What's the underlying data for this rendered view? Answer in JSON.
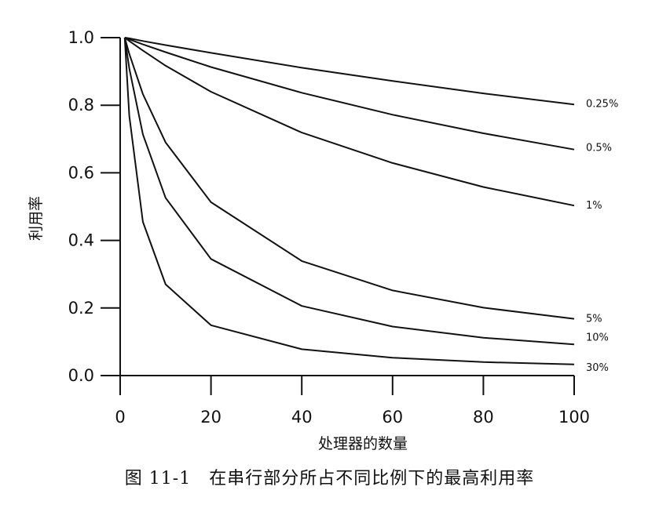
{
  "caption": "图 11-1　在串行部分所占不同比例下的最高利用率",
  "chart_data": {
    "type": "line",
    "xlabel": "处理器的数量",
    "ylabel": "利用率",
    "xlim": [
      0,
      100
    ],
    "ylim": [
      0,
      1.0
    ],
    "x_ticks": [
      0,
      20,
      40,
      60,
      80,
      100
    ],
    "x_tick_labels": [
      "0",
      "20",
      "40",
      "60",
      "80",
      "100"
    ],
    "y_ticks": [
      0.0,
      0.2,
      0.4,
      0.6,
      0.8,
      1.0
    ],
    "y_tick_labels": [
      "0.0",
      "0.2",
      "0.4",
      "0.6",
      "0.8",
      "1.0"
    ],
    "grid": false,
    "series": [
      {
        "name": "0.25%",
        "serial_fraction": 0.0025
      },
      {
        "name": "0.5%",
        "serial_fraction": 0.005
      },
      {
        "name": "1%",
        "serial_fraction": 0.01
      },
      {
        "name": "5%",
        "serial_fraction": 0.05
      },
      {
        "name": "10%",
        "serial_fraction": 0.1
      },
      {
        "name": "30%",
        "serial_fraction": 0.3
      }
    ],
    "x": [
      1,
      2,
      5,
      10,
      20,
      40,
      60,
      80,
      100
    ],
    "series_values": {
      "0.25%": [
        1.0,
        0.998,
        0.99,
        0.978,
        0.955,
        0.911,
        0.872,
        0.835,
        0.802
      ],
      "0.5%": [
        1.0,
        0.995,
        0.98,
        0.957,
        0.913,
        0.837,
        0.772,
        0.717,
        0.669
      ],
      "1%": [
        1.0,
        0.99,
        0.962,
        0.917,
        0.84,
        0.719,
        0.629,
        0.558,
        0.503
      ],
      "5%": [
        1.0,
        0.952,
        0.833,
        0.69,
        0.513,
        0.339,
        0.252,
        0.201,
        0.168
      ],
      "10%": [
        1.0,
        0.909,
        0.714,
        0.526,
        0.345,
        0.206,
        0.145,
        0.112,
        0.092
      ],
      "30%": [
        1.0,
        0.769,
        0.455,
        0.27,
        0.149,
        0.078,
        0.053,
        0.04,
        0.033
      ]
    }
  }
}
